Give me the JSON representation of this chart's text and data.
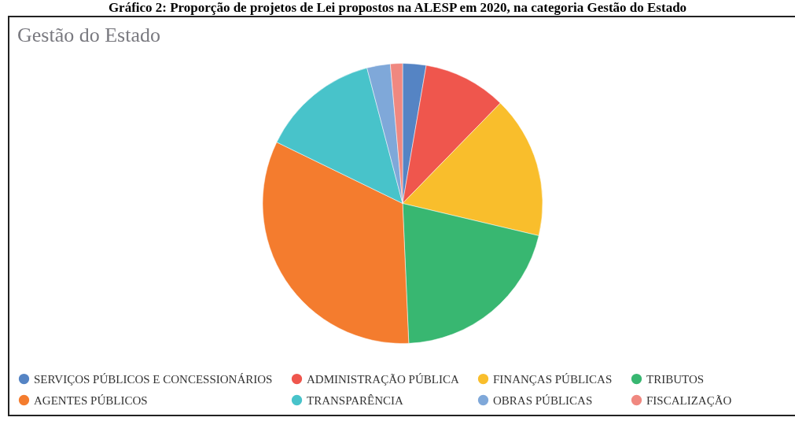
{
  "chart_data": {
    "type": "pie",
    "title": "Gestão do Estado",
    "annotations": [
      "Gráfico 2: Proporção de projetos de Lei propostos na ALESP em 2020, na categoria Gestão do Estado"
    ],
    "categories": [
      "SERVIÇOS PÚBLICOS E CONCESSIONÁRIOS",
      "ADMINISTRAÇÃO PÚBLICA",
      "FINANÇAS PÚBLICAS",
      "TRIBUTOS",
      "AGENTES PÚBLICOS",
      "TRANSPARÊNCIA",
      "OBRAS PÚBLICAS",
      "FISCALIZAÇÃO"
    ],
    "values": [
      2.7,
      9.6,
      16.4,
      20.6,
      32.9,
      13.7,
      2.7,
      1.4
    ],
    "colors": [
      "#5584c4",
      "#ef564d",
      "#f9be2c",
      "#38b771",
      "#f47c2e",
      "#48c3ca",
      "#7fa8d9",
      "#f08880"
    ],
    "legend": "bottom"
  }
}
